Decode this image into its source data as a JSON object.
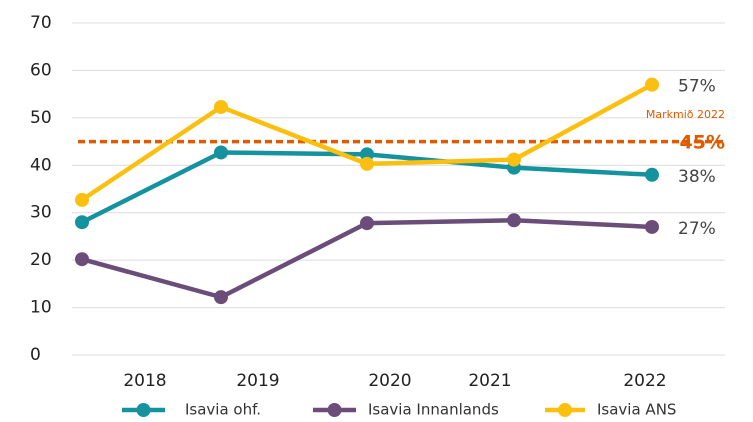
{
  "chart_data": {
    "type": "line",
    "categories": [
      "2018",
      "2019",
      "2020",
      "2021",
      "2022"
    ],
    "series": [
      {
        "name": "Isavia ohf.",
        "color": "#14939e",
        "values": [
          28,
          42.7,
          42.3,
          39.5,
          38
        ],
        "value_labels": [
          null,
          null,
          null,
          null,
          "38%"
        ]
      },
      {
        "name": "Isavia Innanlands",
        "color": "#6a4e79",
        "values": [
          20.2,
          12.2,
          27.8,
          28.4,
          27
        ],
        "value_labels": [
          null,
          null,
          null,
          null,
          "27%"
        ]
      },
      {
        "name": "Isavia ANS",
        "color": "#fbbf10",
        "values": [
          32.7,
          52.3,
          40.3,
          41.2,
          57
        ],
        "value_labels": [
          null,
          null,
          null,
          null,
          "57%"
        ]
      }
    ],
    "target": {
      "label": "Markmið 2022",
      "value": 45,
      "value_label": "45%",
      "color": "#e05a00"
    },
    "ylim": [
      0,
      70
    ],
    "yticks": [
      0,
      10,
      20,
      30,
      40,
      50,
      60,
      70
    ],
    "grid": true
  }
}
